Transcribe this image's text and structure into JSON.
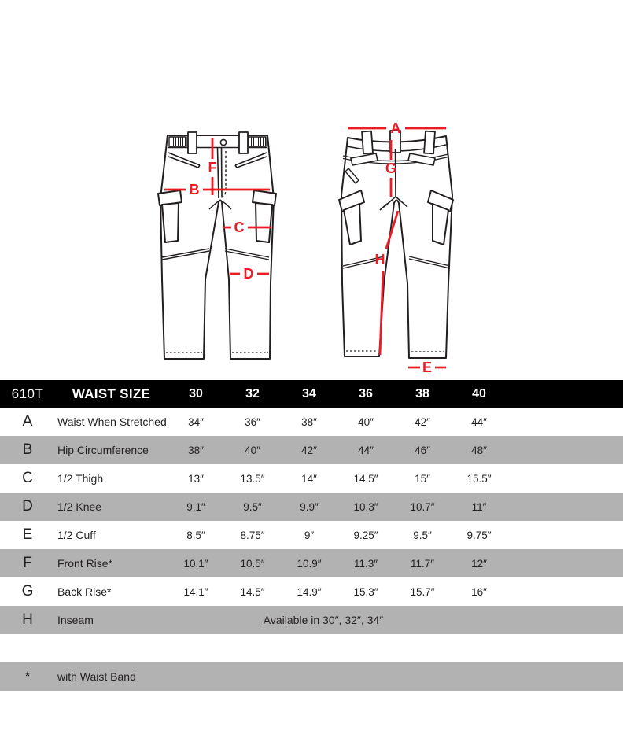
{
  "diagram": {
    "labels": {
      "A": "A",
      "B": "B",
      "C": "C",
      "D": "D",
      "E": "E",
      "F": "F",
      "G": "G",
      "H": "H"
    }
  },
  "colors": {
    "accent_red": "#ed1c24",
    "line_art": "#231f20",
    "header_bg": "#000000",
    "row_gray": "#b2b2b2"
  },
  "table": {
    "model": "610T",
    "header_label": "WAIST SIZE",
    "sizes": [
      "30",
      "32",
      "34",
      "36",
      "38",
      "40"
    ],
    "rows": [
      {
        "letter": "A",
        "label": "Waist When Stretched",
        "values": [
          "34″",
          "36″",
          "38″",
          "40″",
          "42″",
          "44″"
        ]
      },
      {
        "letter": "B",
        "label": "Hip Circumference",
        "values": [
          "38″",
          "40″",
          "42″",
          "44″",
          "46″",
          "48″"
        ]
      },
      {
        "letter": "C",
        "label": "1/2 Thigh",
        "values": [
          "13″",
          "13.5″",
          "14″",
          "14.5″",
          "15″",
          "15.5″"
        ]
      },
      {
        "letter": "D",
        "label": "1/2 Knee",
        "values": [
          "9.1″",
          "9.5″",
          "9.9″",
          "10.3″",
          "10.7″",
          "11″"
        ]
      },
      {
        "letter": "E",
        "label": "1/2 Cuff",
        "values": [
          "8.5″",
          "8.75″",
          "9″",
          "9.25″",
          "9.5″",
          "9.75″"
        ]
      },
      {
        "letter": "F",
        "label": "Front Rise*",
        "values": [
          "10.1″",
          "10.5″",
          "10.9″",
          "11.3″",
          "11.7″",
          "12″"
        ]
      },
      {
        "letter": "G",
        "label": "Back Rise*",
        "values": [
          "14.1″",
          "14.5″",
          "14.9″",
          "15.3″",
          "15.7″",
          "16″"
        ]
      },
      {
        "letter": "H",
        "label": "Inseam",
        "span_text": "Available in 30″, 32″, 34″"
      }
    ],
    "footnote": {
      "marker": "*",
      "text": "with Waist Band"
    }
  }
}
